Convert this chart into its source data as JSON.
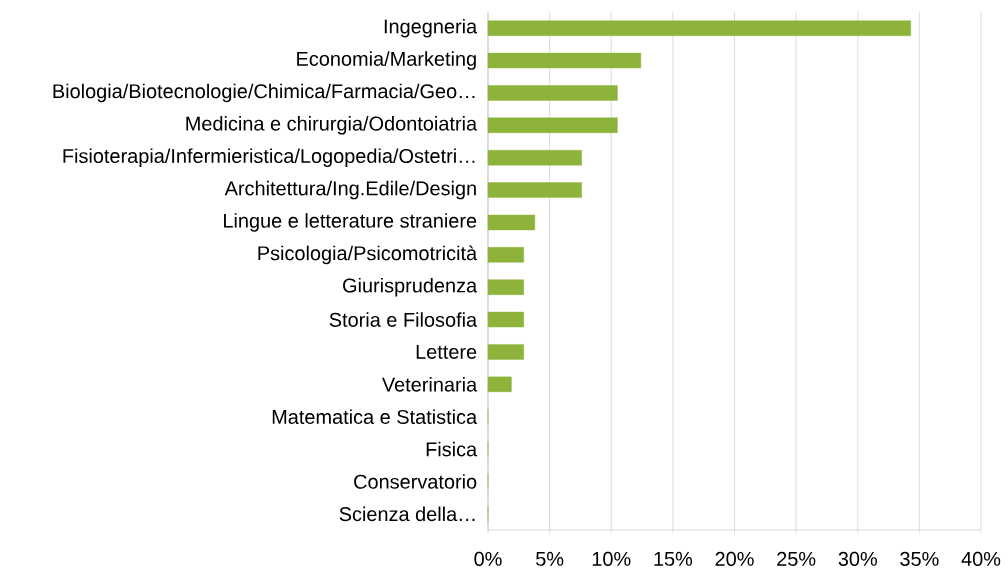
{
  "chart_data": {
    "type": "bar",
    "orientation": "horizontal",
    "categories": [
      "Ingegneria",
      "Economia/Marketing",
      "Biologia/Biotecnologie/Chimica/Farmacia/Geo…",
      "Medicina e chirurgia/Odontoiatria",
      "Fisioterapia/Infermieristica/Logopedia/Ostetri…",
      "Architettura/Ing.Edile/Design",
      "Lingue e letterature straniere",
      "Psicologia/Psicomotricità",
      "Giurisprudenza",
      "Storia e Filosofia",
      "Lettere",
      "Veterinaria",
      "Matematica e Statistica",
      "Fisica",
      "Conservatorio",
      "Scienza della…"
    ],
    "values": [
      34.3,
      12.4,
      10.5,
      10.5,
      7.6,
      7.6,
      3.8,
      2.9,
      2.9,
      2.9,
      2.9,
      1.9,
      0,
      0,
      0,
      0
    ],
    "color": "#8db33a",
    "xlim": [
      0,
      40
    ],
    "xticks": [
      {
        "value": 0,
        "label": "0%"
      },
      {
        "value": 5,
        "label": "5%"
      },
      {
        "value": 10,
        "label": "10%"
      },
      {
        "value": 15,
        "label": "15%"
      },
      {
        "value": 20,
        "label": "20%"
      },
      {
        "value": 25,
        "label": "25%"
      },
      {
        "value": 30,
        "label": "30%"
      },
      {
        "value": 35,
        "label": "35%"
      },
      {
        "value": 40,
        "label": "40%"
      }
    ],
    "grid": "x"
  }
}
